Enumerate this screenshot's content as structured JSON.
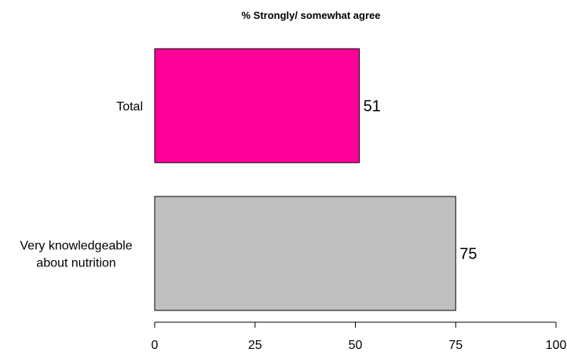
{
  "chart_data": {
    "type": "bar",
    "orientation": "horizontal",
    "title": "% Strongly/ somewhat agree",
    "xlabel": "",
    "ylabel": "",
    "categories": [
      "Total",
      "Very knowledgeable about nutrition"
    ],
    "category_lines": [
      [
        "Total"
      ],
      [
        "Very knowledgeable",
        "about nutrition"
      ]
    ],
    "values": [
      51,
      75
    ],
    "data_labels": [
      "51",
      "75"
    ],
    "bar_colors": [
      "#ff0099",
      "#c0c0c0"
    ],
    "xlim": [
      0,
      100
    ],
    "xticks": [
      0,
      25,
      50,
      75,
      100
    ],
    "tick_labels": [
      "0",
      "25",
      "50",
      "75",
      "100"
    ],
    "grid": false,
    "legend": "none"
  }
}
